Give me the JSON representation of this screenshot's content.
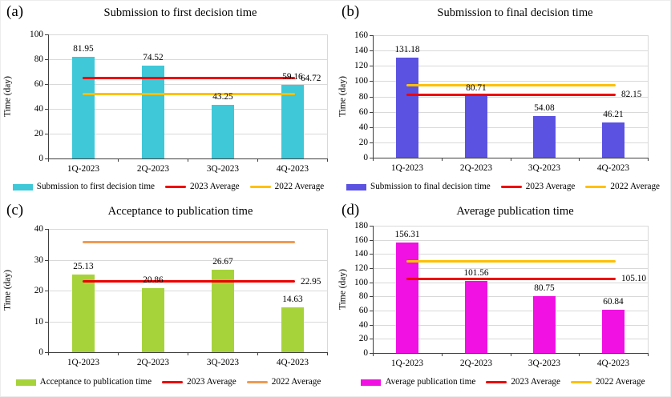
{
  "chart_data": [
    {
      "id": "a",
      "letter": "(a)",
      "type": "bar",
      "title": "Submission to first decision time",
      "ylabel": "Time (day)",
      "ylim": [
        0,
        100
      ],
      "ytick_step": 20,
      "grid": true,
      "legend_position": "bottom",
      "categories": [
        "1Q-2023",
        "2Q-2023",
        "3Q-2023",
        "4Q-2023"
      ],
      "bars": {
        "name": "Submission to first decision time",
        "color": "#3EC8D8",
        "values": [
          81.95,
          74.52,
          43.25,
          59.16
        ]
      },
      "lines": [
        {
          "name": "2023 Average",
          "color": "#EE0000",
          "value": 64.72,
          "label": "64.72"
        },
        {
          "name": "2022 Average",
          "color": "#FFC000",
          "value": 52,
          "label": ""
        }
      ],
      "legend": [
        "Submission to first decision time",
        "2023 Average",
        "2022 Average"
      ]
    },
    {
      "id": "b",
      "letter": "(b)",
      "type": "bar",
      "title": "Submission to final decision time",
      "ylabel": "Time (day)",
      "ylim": [
        0,
        160
      ],
      "ytick_step": 20,
      "grid": true,
      "legend_position": "bottom",
      "categories": [
        "1Q-2023",
        "2Q-2023",
        "3Q-2023",
        "4Q-2023"
      ],
      "bars": {
        "name": "Submission to final decision time",
        "color": "#5B52E2",
        "values": [
          131.18,
          80.71,
          54.08,
          46.21
        ]
      },
      "lines": [
        {
          "name": "2023 Average",
          "color": "#EE0000",
          "value": 82.15,
          "label": "82.15"
        },
        {
          "name": "2022 Average",
          "color": "#FFC000",
          "value": 95,
          "label": ""
        }
      ],
      "legend": [
        "Submission to final decision time",
        "2023 Average",
        "2022 Average"
      ]
    },
    {
      "id": "c",
      "letter": "(c)",
      "type": "bar",
      "title": "Acceptance to publication time",
      "ylabel": "Time (day)",
      "ylim": [
        0,
        40
      ],
      "ytick_step": 10,
      "grid": true,
      "legend_position": "bottom",
      "categories": [
        "1Q-2023",
        "2Q-2023",
        "3Q-2023",
        "4Q-2023"
      ],
      "bars": {
        "name": "Acceptance to publication time",
        "color": "#A6D33A",
        "values": [
          25.13,
          20.86,
          26.67,
          14.63
        ]
      },
      "lines": [
        {
          "name": "2023 Average",
          "color": "#EE0000",
          "value": 22.95,
          "label": "22.95"
        },
        {
          "name": "2022 Average",
          "color": "#F09A52",
          "value": 35.8,
          "label": ""
        }
      ],
      "legend": [
        "Acceptance to publication time",
        "2023 Average",
        "2022 Average"
      ]
    },
    {
      "id": "d",
      "letter": "(d)",
      "type": "bar",
      "title": "Average publication time",
      "ylabel": "Time (day)",
      "ylim": [
        0,
        180
      ],
      "ytick_step": 20,
      "grid": true,
      "legend_position": "bottom",
      "categories": [
        "1Q-2023",
        "2Q-2023",
        "3Q-2023",
        "4Q-2023"
      ],
      "bars": {
        "name": "Average publication time",
        "color": "#F011E2",
        "values": [
          156.31,
          101.56,
          80.75,
          60.84
        ]
      },
      "lines": [
        {
          "name": "2023 Average",
          "color": "#EE0000",
          "value": 105.1,
          "label": "105.10"
        },
        {
          "name": "2022 Average",
          "color": "#FFC000",
          "value": 130,
          "label": ""
        }
      ],
      "legend": [
        "Average publication time",
        "2023 Average",
        "2022 Average"
      ]
    }
  ]
}
